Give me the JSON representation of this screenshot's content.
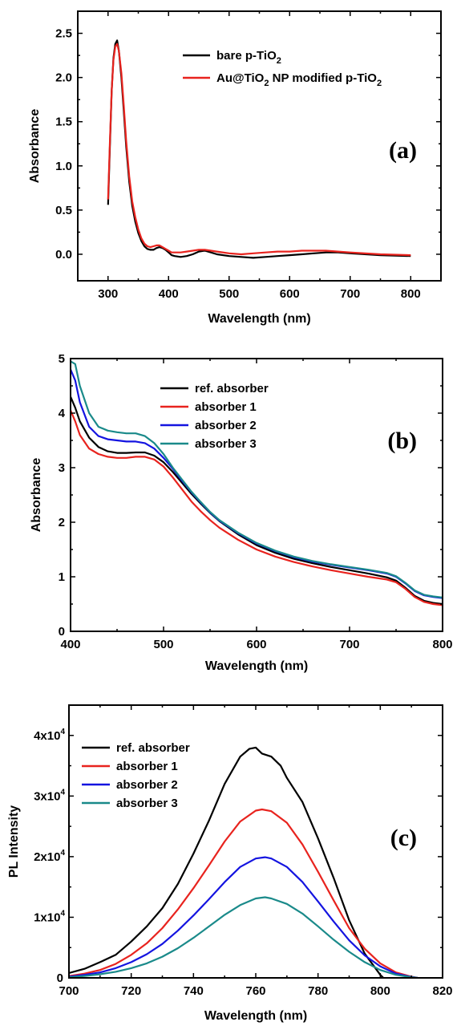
{
  "chart_data": [
    {
      "type": "line",
      "panel_label": "(a)",
      "xlabel": "Wavelength (nm)",
      "ylabel": "Absorbance",
      "xlim": [
        250,
        850
      ],
      "ylim": [
        -0.3,
        2.75
      ],
      "xticks": [
        300,
        400,
        500,
        600,
        700,
        800
      ],
      "yticks": [
        0.0,
        0.5,
        1.0,
        1.5,
        2.0,
        2.5
      ],
      "ytick_labels": [
        "0.0",
        "0.5",
        "1.0",
        "1.5",
        "2.0",
        "2.5"
      ],
      "legend_position": "top-right",
      "series": [
        {
          "name": "bare p-TiO",
          "name_subscript": "2",
          "name_suffix": "",
          "color": "#000000",
          "x": [
            300,
            303,
            306,
            309,
            312,
            315,
            318,
            322,
            326,
            330,
            335,
            340,
            345,
            350,
            355,
            360,
            365,
            370,
            375,
            380,
            385,
            390,
            395,
            400,
            405,
            410,
            420,
            430,
            440,
            450,
            460,
            470,
            480,
            500,
            520,
            540,
            560,
            580,
            600,
            620,
            640,
            660,
            680,
            700,
            750,
            800
          ],
          "y": [
            0.56,
            1.2,
            1.85,
            2.22,
            2.38,
            2.42,
            2.3,
            2.0,
            1.62,
            1.22,
            0.82,
            0.55,
            0.37,
            0.24,
            0.15,
            0.09,
            0.06,
            0.05,
            0.05,
            0.07,
            0.08,
            0.07,
            0.05,
            0.02,
            -0.01,
            -0.02,
            -0.03,
            -0.02,
            0.0,
            0.03,
            0.04,
            0.02,
            0.0,
            -0.02,
            -0.03,
            -0.04,
            -0.03,
            -0.02,
            -0.01,
            0.0,
            0.01,
            0.02,
            0.02,
            0.01,
            -0.01,
            -0.02
          ]
        },
        {
          "name": "Au@TiO",
          "name_subscript": "2",
          "name_suffix": " NP modified p-TiO",
          "name_suffix_subscript": "2",
          "color": "#e8231e",
          "x": [
            300,
            303,
            306,
            309,
            312,
            315,
            318,
            322,
            326,
            330,
            335,
            340,
            345,
            350,
            355,
            360,
            365,
            370,
            375,
            380,
            385,
            390,
            395,
            400,
            405,
            410,
            420,
            430,
            440,
            450,
            460,
            470,
            480,
            500,
            520,
            540,
            560,
            580,
            600,
            620,
            640,
            660,
            680,
            700,
            750,
            800
          ],
          "y": [
            0.62,
            1.25,
            1.85,
            2.2,
            2.35,
            2.38,
            2.3,
            2.05,
            1.68,
            1.28,
            0.88,
            0.6,
            0.42,
            0.28,
            0.18,
            0.12,
            0.09,
            0.08,
            0.09,
            0.1,
            0.1,
            0.08,
            0.06,
            0.04,
            0.02,
            0.02,
            0.02,
            0.03,
            0.04,
            0.05,
            0.05,
            0.04,
            0.03,
            0.01,
            0.0,
            0.01,
            0.02,
            0.03,
            0.03,
            0.04,
            0.04,
            0.04,
            0.03,
            0.02,
            0.0,
            -0.01
          ]
        }
      ]
    },
    {
      "type": "line",
      "panel_label": "(b)",
      "xlabel": "Wavelength (nm)",
      "ylabel": "Absorbance",
      "xlim": [
        400,
        800
      ],
      "ylim": [
        0,
        5
      ],
      "xticks": [
        400,
        500,
        600,
        700,
        800
      ],
      "yticks": [
        0,
        1,
        2,
        3,
        4,
        5
      ],
      "ytick_labels": [
        "0",
        "1",
        "2",
        "3",
        "4",
        "5"
      ],
      "legend_position": "top-right",
      "series": [
        {
          "name": "ref. absorber",
          "color": "#000000",
          "x": [
            400,
            405,
            410,
            420,
            430,
            440,
            450,
            460,
            470,
            480,
            490,
            500,
            510,
            520,
            530,
            540,
            550,
            560,
            580,
            600,
            620,
            640,
            660,
            680,
            700,
            720,
            740,
            750,
            760,
            770,
            780,
            790,
            800
          ],
          "y": [
            4.3,
            4.1,
            3.85,
            3.55,
            3.38,
            3.3,
            3.27,
            3.27,
            3.28,
            3.28,
            3.22,
            3.1,
            2.92,
            2.72,
            2.52,
            2.34,
            2.17,
            2.02,
            1.78,
            1.58,
            1.44,
            1.33,
            1.25,
            1.18,
            1.12,
            1.06,
            0.99,
            0.93,
            0.8,
            0.65,
            0.56,
            0.52,
            0.5
          ]
        },
        {
          "name": "absorber 1",
          "color": "#e8231e",
          "x": [
            400,
            405,
            410,
            420,
            430,
            440,
            450,
            460,
            470,
            480,
            490,
            500,
            510,
            520,
            530,
            540,
            550,
            560,
            580,
            600,
            620,
            640,
            660,
            680,
            700,
            720,
            740,
            750,
            760,
            770,
            780,
            790,
            800
          ],
          "y": [
            4.05,
            3.85,
            3.6,
            3.35,
            3.25,
            3.2,
            3.18,
            3.18,
            3.2,
            3.2,
            3.15,
            3.02,
            2.82,
            2.6,
            2.38,
            2.2,
            2.04,
            1.9,
            1.68,
            1.5,
            1.37,
            1.27,
            1.19,
            1.12,
            1.06,
            1.0,
            0.95,
            0.9,
            0.78,
            0.63,
            0.54,
            0.5,
            0.48
          ]
        },
        {
          "name": "absorber 2",
          "color": "#1414e0",
          "x": [
            400,
            405,
            410,
            420,
            430,
            440,
            450,
            460,
            470,
            480,
            490,
            500,
            510,
            520,
            530,
            540,
            550,
            560,
            580,
            600,
            620,
            640,
            660,
            680,
            700,
            720,
            740,
            750,
            760,
            770,
            780,
            790,
            800
          ],
          "y": [
            4.8,
            4.6,
            4.2,
            3.75,
            3.58,
            3.52,
            3.5,
            3.48,
            3.48,
            3.45,
            3.35,
            3.18,
            2.98,
            2.76,
            2.55,
            2.36,
            2.18,
            2.03,
            1.8,
            1.61,
            1.47,
            1.36,
            1.28,
            1.22,
            1.17,
            1.12,
            1.06,
            1.0,
            0.88,
            0.74,
            0.66,
            0.63,
            0.61
          ]
        },
        {
          "name": "absorber 3",
          "color": "#1a8a8a",
          "x": [
            400,
            405,
            410,
            420,
            430,
            440,
            450,
            460,
            470,
            480,
            490,
            500,
            510,
            520,
            530,
            540,
            550,
            560,
            580,
            600,
            620,
            640,
            660,
            680,
            700,
            720,
            740,
            750,
            760,
            770,
            780,
            790,
            800
          ],
          "y": [
            4.95,
            4.9,
            4.5,
            4.0,
            3.75,
            3.68,
            3.65,
            3.63,
            3.63,
            3.58,
            3.45,
            3.25,
            3.0,
            2.78,
            2.56,
            2.37,
            2.19,
            2.04,
            1.81,
            1.62,
            1.48,
            1.37,
            1.29,
            1.23,
            1.18,
            1.13,
            1.07,
            1.01,
            0.89,
            0.75,
            0.67,
            0.64,
            0.62
          ]
        }
      ]
    },
    {
      "type": "line",
      "panel_label": "(c)",
      "xlabel": "Wavelength (nm)",
      "ylabel": "PL Intensity",
      "xlim": [
        700,
        820
      ],
      "ylim": [
        0,
        45000
      ],
      "xticks": [
        700,
        720,
        740,
        760,
        780,
        800,
        820
      ],
      "yticks": [
        0,
        10000,
        20000,
        30000,
        40000
      ],
      "ytick_labels": [
        "0",
        "1x10",
        "2x10",
        "3x10",
        "4x10"
      ],
      "ytick_superscripts": [
        "",
        "4",
        "4",
        "4",
        "4"
      ],
      "legend_position": "top-left",
      "series": [
        {
          "name": "ref. absorber",
          "color": "#000000",
          "x": [
            700,
            705,
            710,
            715,
            720,
            725,
            730,
            735,
            740,
            745,
            750,
            755,
            758,
            760,
            762,
            765,
            768,
            770,
            775,
            780,
            785,
            790,
            795,
            800,
            801
          ],
          "y": [
            800,
            1500,
            2600,
            3800,
            6000,
            8500,
            11500,
            15500,
            20500,
            26000,
            32000,
            36500,
            37800,
            38000,
            37000,
            36500,
            35000,
            33000,
            29000,
            23000,
            16500,
            9500,
            4000,
            500,
            0
          ]
        },
        {
          "name": "absorber 1",
          "color": "#e8231e",
          "x": [
            700,
            705,
            710,
            715,
            720,
            725,
            730,
            735,
            740,
            745,
            750,
            755,
            760,
            762,
            765,
            770,
            775,
            780,
            785,
            790,
            795,
            800,
            805,
            810,
            812
          ],
          "y": [
            300,
            700,
            1300,
            2300,
            3800,
            5700,
            8200,
            11300,
            14800,
            18600,
            22500,
            25800,
            27600,
            27800,
            27500,
            25600,
            22000,
            17500,
            12800,
            8200,
            4800,
            2400,
            900,
            200,
            0
          ]
        },
        {
          "name": "absorber 2",
          "color": "#1414e0",
          "x": [
            700,
            705,
            710,
            715,
            720,
            725,
            730,
            735,
            740,
            745,
            750,
            755,
            760,
            763,
            765,
            770,
            775,
            780,
            785,
            790,
            795,
            800,
            805,
            810,
            812
          ],
          "y": [
            200,
            500,
            900,
            1600,
            2600,
            3900,
            5600,
            7800,
            10300,
            13000,
            15800,
            18300,
            19700,
            19900,
            19700,
            18300,
            15800,
            12600,
            9300,
            6200,
            3700,
            1900,
            700,
            150,
            0
          ]
        },
        {
          "name": "absorber 3",
          "color": "#1a8a8a",
          "x": [
            700,
            705,
            710,
            715,
            720,
            725,
            730,
            735,
            740,
            745,
            750,
            755,
            760,
            763,
            765,
            770,
            775,
            780,
            785,
            790,
            795,
            800,
            805,
            810,
            812
          ],
          "y": [
            100,
            300,
            600,
            1000,
            1600,
            2400,
            3500,
            4900,
            6600,
            8500,
            10400,
            12000,
            13100,
            13300,
            13100,
            12200,
            10600,
            8500,
            6300,
            4300,
            2600,
            1300,
            500,
            100,
            0
          ]
        }
      ]
    }
  ]
}
